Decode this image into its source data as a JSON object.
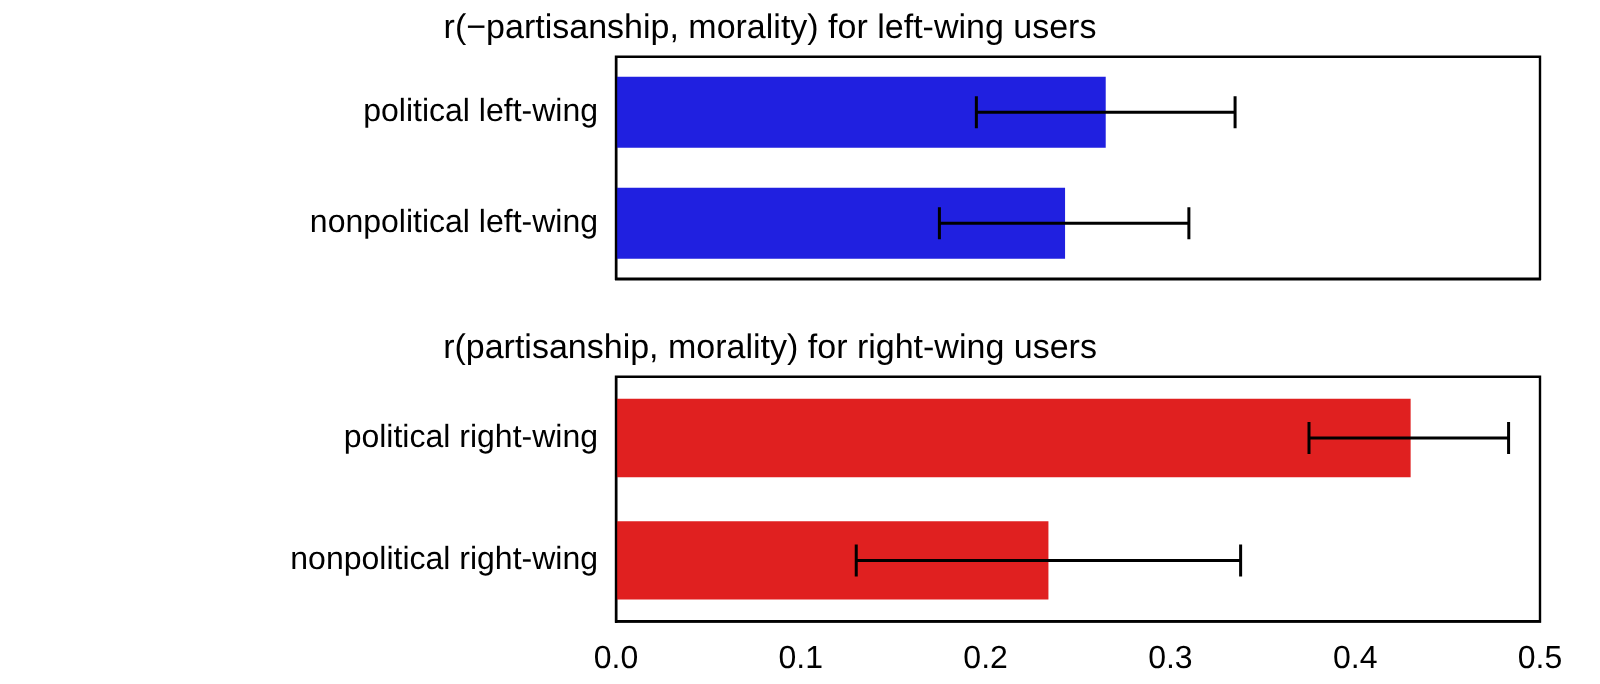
{
  "chart_data": [
    {
      "type": "bar",
      "orientation": "horizontal",
      "title": "r(−partisanship, morality) for left-wing users",
      "categories": [
        "political left-wing",
        "nonpolitical left-wing"
      ],
      "values": [
        0.265,
        0.243
      ],
      "errors": [
        [
          0.195,
          0.335
        ],
        [
          0.175,
          0.31
        ]
      ],
      "color": "#2020e0",
      "xlim": [
        0,
        0.5
      ],
      "xticks": [
        0,
        0.1,
        0.2,
        0.3,
        0.4,
        0.5
      ],
      "tick_labels": "y",
      "grid": false,
      "legend": false
    },
    {
      "type": "bar",
      "orientation": "horizontal",
      "title": "r(partisanship, morality) for right-wing users",
      "categories": [
        "political right-wing",
        "nonpolitical right-wing"
      ],
      "values": [
        0.43,
        0.234
      ],
      "errors": [
        [
          0.375,
          0.483
        ],
        [
          0.13,
          0.338
        ]
      ],
      "color": "#e02020",
      "xlim": [
        0,
        0.5
      ],
      "xticks": [
        {
          "value": 0,
          "label": "0.0"
        },
        0.1,
        0.2,
        0.3,
        0.4,
        0.5
      ],
      "grid": false,
      "legend": false
    }
  ]
}
